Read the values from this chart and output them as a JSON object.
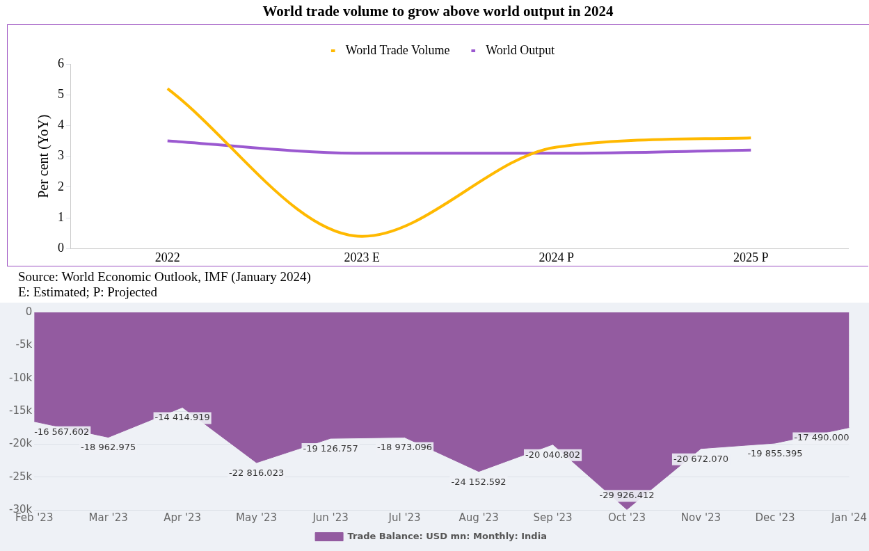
{
  "chart_data": [
    {
      "type": "line",
      "title": "World trade volume to grow above world output in 2024",
      "ylabel": "Per cent (YoY)",
      "categories": [
        "2022",
        "2023 E",
        "2024 P",
        "2025 P"
      ],
      "series": [
        {
          "name": "World Trade Volume",
          "color": "#ffb900",
          "values": [
            5.2,
            0.4,
            3.3,
            3.6
          ]
        },
        {
          "name": "World Output",
          "color": "#9b59d0",
          "values": [
            3.5,
            3.1,
            3.1,
            3.2
          ]
        }
      ],
      "ylim": [
        0,
        6
      ],
      "yticks": [
        0,
        1,
        2,
        3,
        4,
        5,
        6
      ],
      "legend": "top",
      "annotations": [
        "Source: World Economic Outlook, IMF (January 2024)",
        "E: Estimated; P: Projected"
      ]
    },
    {
      "type": "area",
      "categories": [
        "Feb '23",
        "Mar '23",
        "Apr '23",
        "May '23",
        "Jun '23",
        "Jul '23",
        "Aug '23",
        "Sep '23",
        "Oct '23",
        "Nov '23",
        "Dec '23",
        "Jan '24"
      ],
      "series": [
        {
          "name": "Trade Balance: USD mn: Monthly: India",
          "color": "#935ba0",
          "values": [
            -16567.602,
            -18962.975,
            -14414.919,
            -22816.023,
            -19126.757,
            -18973.096,
            -24152.592,
            -20040.802,
            -29926.412,
            -20672.07,
            -19855.395,
            -17490.0
          ]
        }
      ],
      "value_labels": [
        "-16 567.602",
        "-18 962.975",
        "-14 414.919",
        "-22 816.023",
        "-19 126.757",
        "-18 973.096",
        "-24 152.592",
        "-20 040.802",
        "-29 926.412",
        "-20 672.070",
        "-19 855.395",
        "-17 490.000"
      ],
      "ylim": [
        -30000,
        0
      ],
      "yticks": [
        {
          "value": 0,
          "label": "0"
        },
        {
          "value": -5000,
          "label": "-5k"
        },
        {
          "value": -10000,
          "label": "-10k"
        },
        {
          "value": -15000,
          "label": "-15k"
        },
        {
          "value": -20000,
          "label": "-20k"
        },
        {
          "value": -25000,
          "label": "-25k"
        },
        {
          "value": -30000,
          "label": "-30k"
        }
      ],
      "grid": "y",
      "legend": "bottom"
    }
  ]
}
